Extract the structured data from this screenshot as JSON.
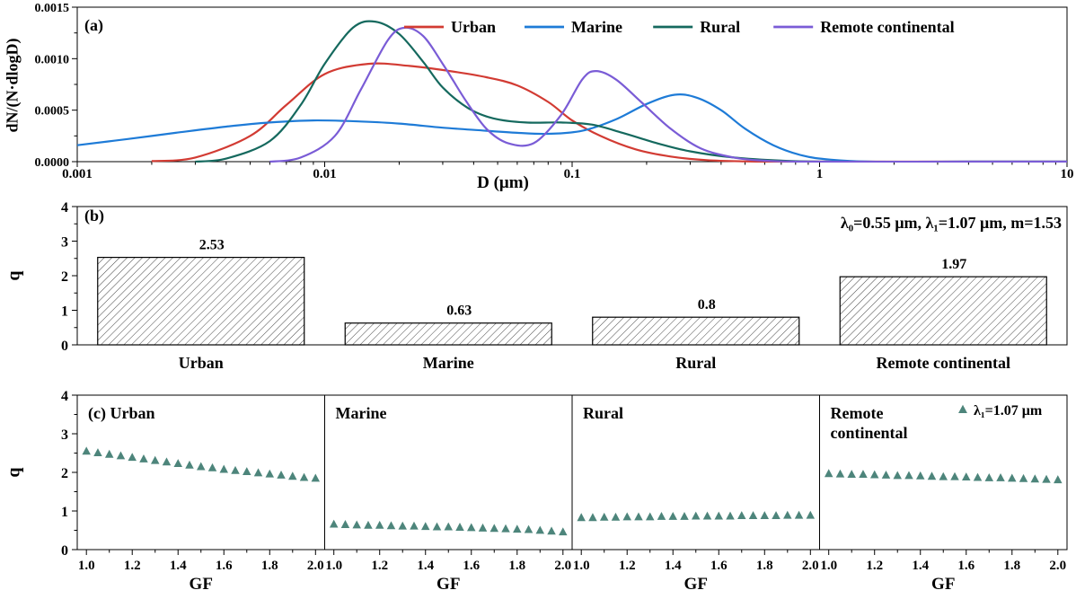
{
  "figure": {
    "background": "#ffffff",
    "text_color": "#000000"
  },
  "chart_data": [
    {
      "id": "a",
      "type": "line",
      "panel_label": "(a)",
      "ylabel": "dN/(N·dlogD)",
      "xlabel": "D (μm)",
      "x_scale": "log",
      "xlim": [
        0.001,
        10
      ],
      "ylim": [
        0,
        0.0015
      ],
      "xticks": [
        0.001,
        0.01,
        0.1,
        1,
        10
      ],
      "xtick_labels": [
        "0.001",
        "0.01",
        "0.1",
        "1",
        "10"
      ],
      "yticks": [
        0,
        0.0005,
        0.001,
        0.0015
      ],
      "ytick_labels": [
        "0.0000",
        "0.0005",
        "0.0010",
        "0.0015"
      ],
      "legend_position": "top-inside",
      "series": [
        {
          "name": "Urban",
          "color": "#d23b33",
          "points": [
            [
              0.002,
              5e-06
            ],
            [
              0.003,
              4e-05
            ],
            [
              0.005,
              0.00025
            ],
            [
              0.007,
              0.00055
            ],
            [
              0.01,
              0.00085
            ],
            [
              0.015,
              0.00095
            ],
            [
              0.022,
              0.00093
            ],
            [
              0.032,
              0.00088
            ],
            [
              0.045,
              0.00082
            ],
            [
              0.06,
              0.00074
            ],
            [
              0.08,
              0.00058
            ],
            [
              0.1,
              0.0004
            ],
            [
              0.13,
              0.00025
            ],
            [
              0.18,
              0.00012
            ],
            [
              0.25,
              5e-05
            ],
            [
              0.35,
              1.5e-05
            ],
            [
              0.5,
              3e-06
            ],
            [
              0.7,
              0
            ],
            [
              1.5,
              0
            ],
            [
              4,
              0
            ],
            [
              10,
              0
            ]
          ]
        },
        {
          "name": "Marine",
          "color": "#1e7bd7",
          "points": [
            [
              0.001,
              0.00016
            ],
            [
              0.0016,
              0.00022
            ],
            [
              0.0025,
              0.00028
            ],
            [
              0.004,
              0.00034
            ],
            [
              0.006,
              0.00038
            ],
            [
              0.009,
              0.0004
            ],
            [
              0.014,
              0.00039
            ],
            [
              0.02,
              0.00037
            ],
            [
              0.03,
              0.00033
            ],
            [
              0.045,
              0.0003
            ],
            [
              0.06,
              0.00028
            ],
            [
              0.08,
              0.00027
            ],
            [
              0.11,
              0.0003
            ],
            [
              0.15,
              0.00041
            ],
            [
              0.2,
              0.00056
            ],
            [
              0.26,
              0.00065
            ],
            [
              0.32,
              0.00062
            ],
            [
              0.4,
              0.0005
            ],
            [
              0.5,
              0.00032
            ],
            [
              0.65,
              0.00016
            ],
            [
              0.85,
              6e-05
            ],
            [
              1.1,
              2e-05
            ],
            [
              1.6,
              0
            ],
            [
              4,
              0
            ],
            [
              10,
              0
            ]
          ]
        },
        {
          "name": "Rural",
          "color": "#15695e",
          "points": [
            [
              0.003,
              0
            ],
            [
              0.004,
              3e-05
            ],
            [
              0.006,
              0.0002
            ],
            [
              0.008,
              0.00055
            ],
            [
              0.01,
              0.00095
            ],
            [
              0.013,
              0.0013
            ],
            [
              0.016,
              0.00136
            ],
            [
              0.02,
              0.00124
            ],
            [
              0.025,
              0.00097
            ],
            [
              0.03,
              0.00072
            ],
            [
              0.038,
              0.00052
            ],
            [
              0.048,
              0.00042
            ],
            [
              0.065,
              0.00038
            ],
            [
              0.09,
              0.00038
            ],
            [
              0.12,
              0.00036
            ],
            [
              0.16,
              0.00028
            ],
            [
              0.22,
              0.00018
            ],
            [
              0.3,
              0.0001
            ],
            [
              0.45,
              4e-05
            ],
            [
              0.7,
              1e-05
            ],
            [
              1.1,
              0
            ],
            [
              4,
              0
            ],
            [
              10,
              0
            ]
          ]
        },
        {
          "name": "Remote continental",
          "color": "#7a5cd6",
          "points": [
            [
              0.006,
              0
            ],
            [
              0.008,
              4e-05
            ],
            [
              0.011,
              0.00025
            ],
            [
              0.014,
              0.0007
            ],
            [
              0.018,
              0.00118
            ],
            [
              0.021,
              0.0013
            ],
            [
              0.025,
              0.00122
            ],
            [
              0.03,
              0.00095
            ],
            [
              0.037,
              0.0006
            ],
            [
              0.045,
              0.00032
            ],
            [
              0.055,
              0.00018
            ],
            [
              0.07,
              0.00018
            ],
            [
              0.09,
              0.00045
            ],
            [
              0.11,
              0.0008
            ],
            [
              0.125,
              0.00088
            ],
            [
              0.15,
              0.0008
            ],
            [
              0.19,
              0.00058
            ],
            [
              0.25,
              0.00032
            ],
            [
              0.33,
              0.00013
            ],
            [
              0.45,
              4e-05
            ],
            [
              0.6,
              1e-05
            ],
            [
              0.9,
              0
            ],
            [
              4,
              0
            ],
            [
              10,
              0
            ]
          ]
        }
      ]
    },
    {
      "id": "b",
      "type": "bar",
      "panel_label": "(b)",
      "ylabel": "q",
      "ylim": [
        0,
        4
      ],
      "yticks": [
        0,
        1,
        2,
        3,
        4
      ],
      "categories": [
        "Urban",
        "Marine",
        "Rural",
        "Remote continental"
      ],
      "values": [
        2.53,
        0.63,
        0.8,
        1.97
      ],
      "value_labels": [
        "2.53",
        "0.63",
        "0.8",
        "1.97"
      ],
      "annotation": "λ₀=0.55 μm,  λ₁=1.07 μm,  m=1.53",
      "bar_style": {
        "fill": "diagonal-hatch",
        "stroke": "#000000"
      }
    },
    {
      "id": "c",
      "type": "scatter",
      "panel_label": "(c)",
      "ylabel": "q",
      "xlabel": "GF",
      "ylim": [
        0,
        4
      ],
      "yticks": [
        0,
        1,
        2,
        3,
        4
      ],
      "xlim": [
        1.0,
        2.0
      ],
      "xticks": [
        1.0,
        1.2,
        1.4,
        1.6,
        1.8,
        2.0
      ],
      "xtick_labels": [
        "1.0",
        "1.2",
        "1.4",
        "1.6",
        "1.8",
        "2.0"
      ],
      "marker": {
        "shape": "triangle-up",
        "color": "#4d857b"
      },
      "legend": "λ₁=1.07 μm",
      "gf": [
        1,
        1.05,
        1.1,
        1.15,
        1.2,
        1.25,
        1.3,
        1.35,
        1.4,
        1.45,
        1.5,
        1.55,
        1.6,
        1.65,
        1.7,
        1.75,
        1.8,
        1.85,
        1.9,
        1.95,
        2
      ],
      "subpanels": [
        {
          "name": "Urban",
          "q": [
            2.55,
            2.51,
            2.47,
            2.43,
            2.39,
            2.35,
            2.31,
            2.27,
            2.23,
            2.19,
            2.15,
            2.12,
            2.08,
            2.05,
            2.02,
            1.99,
            1.96,
            1.93,
            1.9,
            1.87,
            1.85
          ]
        },
        {
          "name": "Marine",
          "q": [
            0.66,
            0.65,
            0.64,
            0.63,
            0.63,
            0.62,
            0.61,
            0.61,
            0.6,
            0.59,
            0.59,
            0.58,
            0.57,
            0.56,
            0.55,
            0.54,
            0.53,
            0.52,
            0.5,
            0.48,
            0.46
          ]
        },
        {
          "name": "Rural",
          "q": [
            0.83,
            0.83,
            0.84,
            0.84,
            0.85,
            0.85,
            0.85,
            0.86,
            0.86,
            0.86,
            0.87,
            0.87,
            0.87,
            0.87,
            0.88,
            0.88,
            0.88,
            0.88,
            0.89,
            0.89,
            0.89
          ]
        },
        {
          "name": "Remote continental",
          "title_lines": [
            "Remote",
            "continental"
          ],
          "q": [
            1.97,
            1.96,
            1.95,
            1.95,
            1.94,
            1.93,
            1.92,
            1.92,
            1.91,
            1.9,
            1.89,
            1.89,
            1.88,
            1.87,
            1.86,
            1.86,
            1.85,
            1.84,
            1.83,
            1.82,
            1.81
          ]
        }
      ]
    }
  ]
}
